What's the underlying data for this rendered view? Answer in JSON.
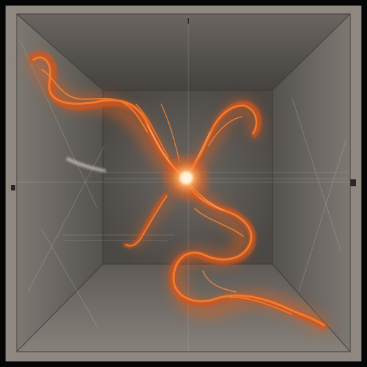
{
  "scene": {
    "top_label": "",
    "right_label": "",
    "left_label": "",
    "center_label": "",
    "bottom_label": "",
    "colors": {
      "frame": "#908a83",
      "back_wall": "#5d5955",
      "side_walls": "#6c6762",
      "floor": "#76716c",
      "ceiling": "#4f4b48",
      "flame_outer": "#d2551a",
      "flame_mid": "#f07a2a",
      "flame_core": "#ffd3a0"
    }
  }
}
